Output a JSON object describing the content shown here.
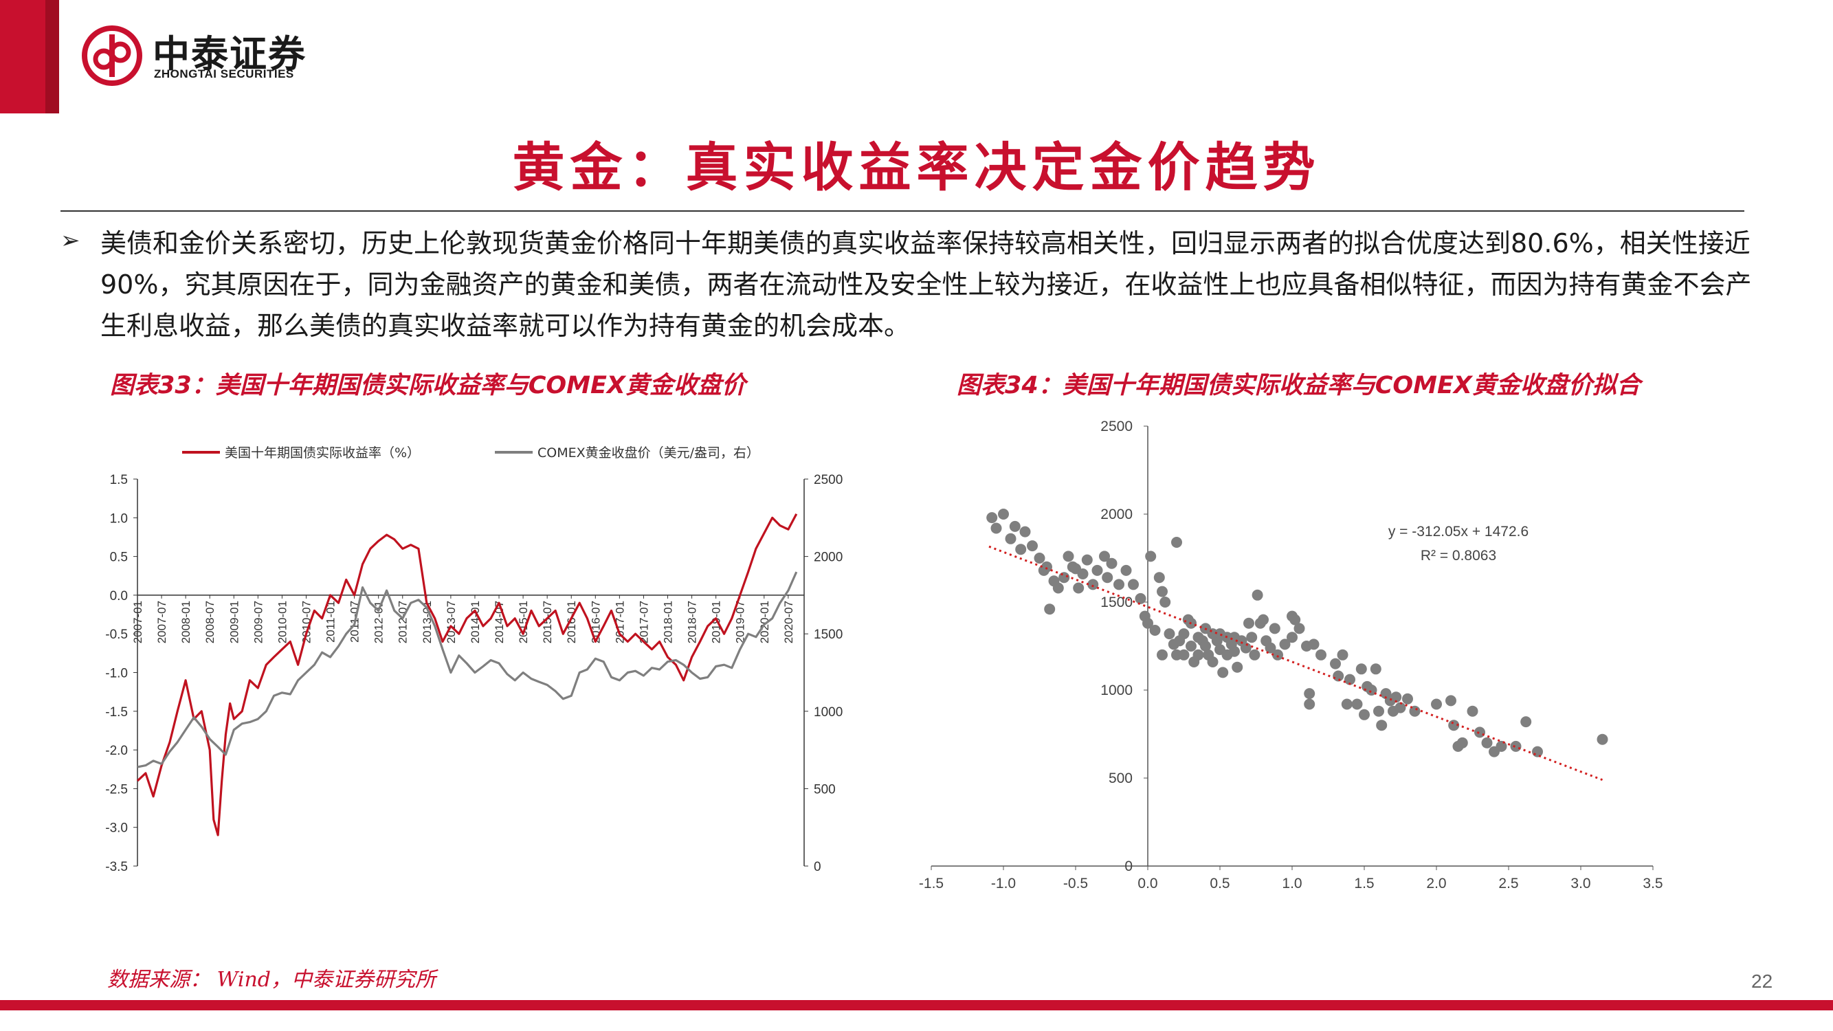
{
  "header": {
    "logo_cn": "中泰证券",
    "logo_en": "ZHONGTAI SECURITIES",
    "brand_color": "#c8102e"
  },
  "page": {
    "title": "黄金：真实收益率决定金价趋势",
    "bullet": "➢",
    "body": "美债和金价关系密切，历史上伦敦现货黄金价格同十年期美债的真实收益率保持较高相关性，回归显示两者的拟合优度达到80.6%，相关性接近90%，究其原因在于，同为金融资产的黄金和美债，两者在流动性及安全性上较为接近，在收益性上也应具备相似特征，而因为持有黄金不会产生利息收益，那么美债的真实收益率就可以作为持有黄金的机会成本。",
    "source": "数据来源： Wind，中泰证券研究所",
    "page_number": "22"
  },
  "chart_data": [
    {
      "type": "line",
      "caption": "图表33：美国十年期国债实际收益率与COMEX黄金收盘价",
      "series": [
        {
          "name": "美国十年期国债实际收益率（%）",
          "axis": "left",
          "color": "#c0121f",
          "x": [
            2007.0,
            2007.17,
            2007.33,
            2007.5,
            2007.67,
            2007.83,
            2008.0,
            2008.17,
            2008.33,
            2008.5,
            2008.58,
            2008.67,
            2008.75,
            2008.83,
            2008.92,
            2009.0,
            2009.17,
            2009.33,
            2009.5,
            2009.67,
            2009.83,
            2010.0,
            2010.17,
            2010.33,
            2010.5,
            2010.67,
            2010.83,
            2011.0,
            2011.17,
            2011.33,
            2011.5,
            2011.67,
            2011.83,
            2012.0,
            2012.17,
            2012.33,
            2012.5,
            2012.67,
            2012.83,
            2013.0,
            2013.17,
            2013.33,
            2013.5,
            2013.67,
            2013.83,
            2014.0,
            2014.17,
            2014.33,
            2014.5,
            2014.67,
            2014.83,
            2015.0,
            2015.17,
            2015.33,
            2015.5,
            2015.67,
            2015.83,
            2016.0,
            2016.17,
            2016.33,
            2016.5,
            2016.67,
            2016.83,
            2017.0,
            2017.17,
            2017.33,
            2017.5,
            2017.67,
            2017.83,
            2018.0,
            2018.17,
            2018.33,
            2018.5,
            2018.67,
            2018.83,
            2019.0,
            2019.17,
            2019.33,
            2019.5,
            2019.67,
            2019.83,
            2020.0,
            2020.17,
            2020.33,
            2020.5,
            2020.67
          ],
          "y": [
            -2.4,
            -2.3,
            -2.6,
            -2.2,
            -1.9,
            -1.5,
            -1.1,
            -1.6,
            -1.5,
            -2.0,
            -2.9,
            -3.1,
            -2.4,
            -1.8,
            -1.4,
            -1.6,
            -1.5,
            -1.1,
            -1.2,
            -0.9,
            -0.8,
            -0.7,
            -0.6,
            -0.9,
            -0.5,
            -0.2,
            -0.3,
            0.0,
            -0.1,
            0.2,
            0.0,
            0.4,
            0.6,
            0.7,
            0.78,
            0.72,
            0.6,
            0.65,
            0.6,
            -0.1,
            -0.3,
            -0.6,
            -0.4,
            -0.5,
            -0.3,
            -0.2,
            -0.4,
            -0.3,
            -0.1,
            -0.4,
            -0.3,
            -0.5,
            -0.2,
            -0.4,
            -0.3,
            -0.2,
            -0.5,
            -0.3,
            -0.1,
            -0.3,
            -0.6,
            -0.4,
            -0.2,
            -0.5,
            -0.6,
            -0.5,
            -0.6,
            -0.7,
            -0.6,
            -0.8,
            -0.9,
            -1.1,
            -0.8,
            -0.6,
            -0.4,
            -0.3,
            -0.5,
            -0.3,
            0.0,
            0.3,
            0.6,
            0.8,
            1.0,
            0.9,
            0.85,
            1.05
          ]
        },
        {
          "name": "COMEX黄金收盘价（美元/盎司，右）",
          "axis": "right",
          "color": "#7f7f7f",
          "x": [
            2007.0,
            2007.17,
            2007.33,
            2007.5,
            2007.67,
            2007.83,
            2008.0,
            2008.17,
            2008.33,
            2008.5,
            2008.67,
            2008.83,
            2009.0,
            2009.17,
            2009.33,
            2009.5,
            2009.67,
            2009.83,
            2010.0,
            2010.17,
            2010.33,
            2010.5,
            2010.67,
            2010.83,
            2011.0,
            2011.17,
            2011.33,
            2011.5,
            2011.67,
            2011.83,
            2012.0,
            2012.17,
            2012.33,
            2012.5,
            2012.67,
            2012.83,
            2013.0,
            2013.17,
            2013.33,
            2013.5,
            2013.67,
            2013.83,
            2014.0,
            2014.17,
            2014.33,
            2014.5,
            2014.67,
            2014.83,
            2015.0,
            2015.17,
            2015.33,
            2015.5,
            2015.67,
            2015.83,
            2016.0,
            2016.17,
            2016.33,
            2016.5,
            2016.67,
            2016.83,
            2017.0,
            2017.17,
            2017.33,
            2017.5,
            2017.67,
            2017.83,
            2018.0,
            2018.17,
            2018.33,
            2018.5,
            2018.67,
            2018.83,
            2019.0,
            2019.17,
            2019.33,
            2019.5,
            2019.67,
            2019.83,
            2020.0,
            2020.17,
            2020.33,
            2020.5,
            2020.67
          ],
          "y": [
            640,
            650,
            680,
            660,
            740,
            800,
            880,
            960,
            900,
            820,
            770,
            720,
            880,
            920,
            930,
            950,
            1000,
            1100,
            1120,
            1110,
            1200,
            1250,
            1300,
            1380,
            1350,
            1420,
            1500,
            1560,
            1800,
            1700,
            1650,
            1780,
            1650,
            1600,
            1700,
            1720,
            1670,
            1550,
            1400,
            1250,
            1360,
            1310,
            1250,
            1290,
            1330,
            1310,
            1240,
            1200,
            1250,
            1210,
            1190,
            1170,
            1130,
            1080,
            1100,
            1250,
            1270,
            1340,
            1320,
            1220,
            1200,
            1250,
            1260,
            1230,
            1280,
            1270,
            1320,
            1330,
            1300,
            1250,
            1210,
            1220,
            1290,
            1300,
            1280,
            1400,
            1500,
            1480,
            1560,
            1600,
            1700,
            1780,
            1900
          ]
        }
      ],
      "x_tick_labels": [
        "2007-01",
        "2007-07",
        "2008-01",
        "2008-07",
        "2009-01",
        "2009-07",
        "2010-01",
        "2010-07",
        "2011-01",
        "2011-07",
        "2012-01",
        "2012-07",
        "2013-01",
        "2013-07",
        "2014-01",
        "2014-07",
        "2015-01",
        "2015-07",
        "2016-01",
        "2016-07",
        "2017-01",
        "2017-07",
        "2018-01",
        "2018-07",
        "2019-01",
        "2019-07",
        "2020-01",
        "2020-07"
      ],
      "y_left_ticks": [
        "1.5",
        "1.0",
        "0.5",
        "0.0",
        "-0.5",
        "-1.0",
        "-1.5",
        "-2.0",
        "-2.5",
        "-3.0",
        "-3.5"
      ],
      "y_right_ticks": [
        "2500",
        "2000",
        "1500",
        "1000",
        "500",
        "0"
      ],
      "ylim_left": [
        -3.5,
        1.5
      ],
      "ylim_right": [
        0,
        2500
      ],
      "legend_position": "top"
    },
    {
      "type": "scatter",
      "caption": "图表34：美国十年期国债实际收益率与COMEX黄金收盘价拟合",
      "points": [
        [
          -1.08,
          1980
        ],
        [
          -1.05,
          1920
        ],
        [
          -1.0,
          2000
        ],
        [
          -0.95,
          1860
        ],
        [
          -0.92,
          1930
        ],
        [
          -0.88,
          1800
        ],
        [
          -0.85,
          1900
        ],
        [
          -0.8,
          1820
        ],
        [
          -0.75,
          1750
        ],
        [
          -0.72,
          1680
        ],
        [
          -0.7,
          1700
        ],
        [
          -0.68,
          1460
        ],
        [
          -0.65,
          1620
        ],
        [
          -0.62,
          1580
        ],
        [
          -0.58,
          1640
        ],
        [
          -0.55,
          1760
        ],
        [
          -0.52,
          1700
        ],
        [
          -0.5,
          1690
        ],
        [
          -0.48,
          1580
        ],
        [
          -0.45,
          1660
        ],
        [
          -0.42,
          1740
        ],
        [
          -0.38,
          1600
        ],
        [
          -0.35,
          1680
        ],
        [
          -0.3,
          1760
        ],
        [
          -0.28,
          1640
        ],
        [
          -0.25,
          1720
        ],
        [
          -0.2,
          1600
        ],
        [
          -0.15,
          1680
        ],
        [
          -0.1,
          1600
        ],
        [
          -0.05,
          1520
        ],
        [
          -0.02,
          1420
        ],
        [
          0.0,
          1380
        ],
        [
          0.02,
          1760
        ],
        [
          0.05,
          1340
        ],
        [
          0.08,
          1640
        ],
        [
          0.1,
          1560
        ],
        [
          0.1,
          1200
        ],
        [
          0.12,
          1500
        ],
        [
          0.15,
          1320
        ],
        [
          0.18,
          1260
        ],
        [
          0.2,
          1840
        ],
        [
          0.2,
          1200
        ],
        [
          0.22,
          1280
        ],
        [
          0.25,
          1320
        ],
        [
          0.25,
          1200
        ],
        [
          0.28,
          1400
        ],
        [
          0.3,
          1250
        ],
        [
          0.3,
          1380
        ],
        [
          0.32,
          1160
        ],
        [
          0.35,
          1300
        ],
        [
          0.35,
          1200
        ],
        [
          0.38,
          1280
        ],
        [
          0.4,
          1250
        ],
        [
          0.4,
          1350
        ],
        [
          0.42,
          1200
        ],
        [
          0.45,
          1320
        ],
        [
          0.45,
          1160
        ],
        [
          0.48,
          1280
        ],
        [
          0.5,
          1230
        ],
        [
          0.5,
          1320
        ],
        [
          0.52,
          1100
        ],
        [
          0.55,
          1300
        ],
        [
          0.55,
          1200
        ],
        [
          0.58,
          1260
        ],
        [
          0.6,
          1220
        ],
        [
          0.6,
          1300
        ],
        [
          0.62,
          1130
        ],
        [
          0.65,
          1280
        ],
        [
          0.68,
          1240
        ],
        [
          0.7,
          1380
        ],
        [
          0.72,
          1300
        ],
        [
          0.74,
          1200
        ],
        [
          0.76,
          1540
        ],
        [
          0.78,
          1380
        ],
        [
          0.8,
          1400
        ],
        [
          0.82,
          1280
        ],
        [
          0.85,
          1240
        ],
        [
          0.88,
          1350
        ],
        [
          0.9,
          1200
        ],
        [
          0.95,
          1260
        ],
        [
          1.0,
          1300
        ],
        [
          1.0,
          1420
        ],
        [
          1.02,
          1400
        ],
        [
          1.05,
          1350
        ],
        [
          1.1,
          1250
        ],
        [
          1.12,
          980
        ],
        [
          1.12,
          920
        ],
        [
          1.15,
          1260
        ],
        [
          1.2,
          1200
        ],
        [
          1.3,
          1150
        ],
        [
          1.32,
          1080
        ],
        [
          1.35,
          1200
        ],
        [
          1.38,
          920
        ],
        [
          1.4,
          1060
        ],
        [
          1.45,
          920
        ],
        [
          1.48,
          1120
        ],
        [
          1.5,
          860
        ],
        [
          1.52,
          1020
        ],
        [
          1.55,
          1000
        ],
        [
          1.58,
          1120
        ],
        [
          1.6,
          880
        ],
        [
          1.62,
          800
        ],
        [
          1.65,
          980
        ],
        [
          1.68,
          940
        ],
        [
          1.7,
          880
        ],
        [
          1.72,
          960
        ],
        [
          1.75,
          900
        ],
        [
          1.8,
          950
        ],
        [
          1.85,
          880
        ],
        [
          2.0,
          920
        ],
        [
          2.1,
          940
        ],
        [
          2.12,
          800
        ],
        [
          2.15,
          680
        ],
        [
          2.18,
          700
        ],
        [
          2.25,
          880
        ],
        [
          2.3,
          760
        ],
        [
          2.35,
          700
        ],
        [
          2.4,
          650
        ],
        [
          2.45,
          680
        ],
        [
          2.55,
          680
        ],
        [
          2.62,
          820
        ],
        [
          2.7,
          650
        ],
        [
          3.15,
          720
        ]
      ],
      "trendline": {
        "slope": -312.05,
        "intercept": 1472.6
      },
      "equation_text": "y = -312.05x + 1472.6",
      "r2_text": "R² = 0.8063",
      "x_ticks": [
        "-1.5",
        "-1.0",
        "-0.5",
        "0.0",
        "0.5",
        "1.0",
        "1.5",
        "2.0",
        "2.5",
        "3.0",
        "3.5"
      ],
      "y_ticks": [
        "2500",
        "2000",
        "1500",
        "1000",
        "500",
        "0"
      ],
      "xlim": [
        -1.5,
        3.5
      ],
      "ylim": [
        0,
        2500
      ],
      "point_color": "#7f7f7f",
      "trend_color": "#d21f1f"
    }
  ]
}
